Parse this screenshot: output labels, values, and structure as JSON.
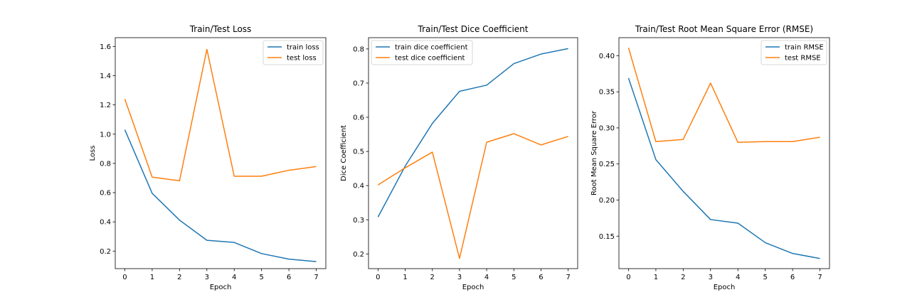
{
  "chart_data": [
    {
      "type": "line",
      "title": "Train/Test Loss",
      "xlabel": "Epoch",
      "ylabel": "Loss",
      "x": [
        0,
        1,
        2,
        3,
        4,
        5,
        6,
        7
      ],
      "xlim": [
        -0.35,
        7.35
      ],
      "ylim": [
        0.08,
        1.66
      ],
      "yticks": [
        0.2,
        0.4,
        0.6,
        0.8,
        1.0,
        1.2,
        1.4,
        1.6
      ],
      "ytick_labels": [
        "0.2",
        "0.4",
        "0.6",
        "0.8",
        "1.0",
        "1.2",
        "1.4",
        "1.6"
      ],
      "legend": "top-right",
      "grid": false,
      "series": [
        {
          "name": "train loss",
          "color": "#1f77b4",
          "values": [
            1.03,
            0.595,
            0.412,
            0.274,
            0.259,
            0.183,
            0.145,
            0.128
          ]
        },
        {
          "name": "test loss",
          "color": "#ff7f0e",
          "values": [
            1.24,
            0.706,
            0.681,
            1.58,
            0.712,
            0.712,
            0.753,
            0.778
          ]
        }
      ]
    },
    {
      "type": "line",
      "title": "Train/Test Dice Coefficient",
      "xlabel": "Epoch",
      "ylabel": "Dice Coefficient",
      "x": [
        0,
        1,
        2,
        3,
        4,
        5,
        6,
        7
      ],
      "xlim": [
        -0.35,
        7.35
      ],
      "ylim": [
        0.157,
        0.833
      ],
      "yticks": [
        0.2,
        0.3,
        0.4,
        0.5,
        0.6,
        0.7,
        0.8
      ],
      "ytick_labels": [
        "0.2",
        "0.3",
        "0.4",
        "0.5",
        "0.6",
        "0.7",
        "0.8"
      ],
      "legend": "top-left",
      "grid": false,
      "series": [
        {
          "name": "train dice coefficient",
          "color": "#1f77b4",
          "values": [
            0.308,
            0.457,
            0.582,
            0.676,
            0.694,
            0.757,
            0.785,
            0.801
          ]
        },
        {
          "name": "test dice coefficient",
          "color": "#ff7f0e",
          "values": [
            0.402,
            0.452,
            0.498,
            0.187,
            0.527,
            0.552,
            0.519,
            0.544
          ]
        }
      ]
    },
    {
      "type": "line",
      "title": "Train/Test Root Mean Square Error (RMSE)",
      "xlabel": "Epoch",
      "ylabel": "Root Mean Square Error",
      "x": [
        0,
        1,
        2,
        3,
        4,
        5,
        6,
        7
      ],
      "xlim": [
        -0.35,
        7.35
      ],
      "ylim": [
        0.105,
        0.425
      ],
      "yticks": [
        0.15,
        0.2,
        0.25,
        0.3,
        0.35,
        0.4
      ],
      "ytick_labels": [
        "0.15",
        "0.20",
        "0.25",
        "0.30",
        "0.35",
        "0.40"
      ],
      "legend": "top-right",
      "grid": false,
      "series": [
        {
          "name": "train RMSE",
          "color": "#1f77b4",
          "values": [
            0.369,
            0.256,
            0.212,
            0.173,
            0.168,
            0.141,
            0.126,
            0.119
          ]
        },
        {
          "name": "test RMSE",
          "color": "#ff7f0e",
          "values": [
            0.411,
            0.281,
            0.284,
            0.362,
            0.28,
            0.281,
            0.281,
            0.287
          ]
        }
      ]
    }
  ]
}
